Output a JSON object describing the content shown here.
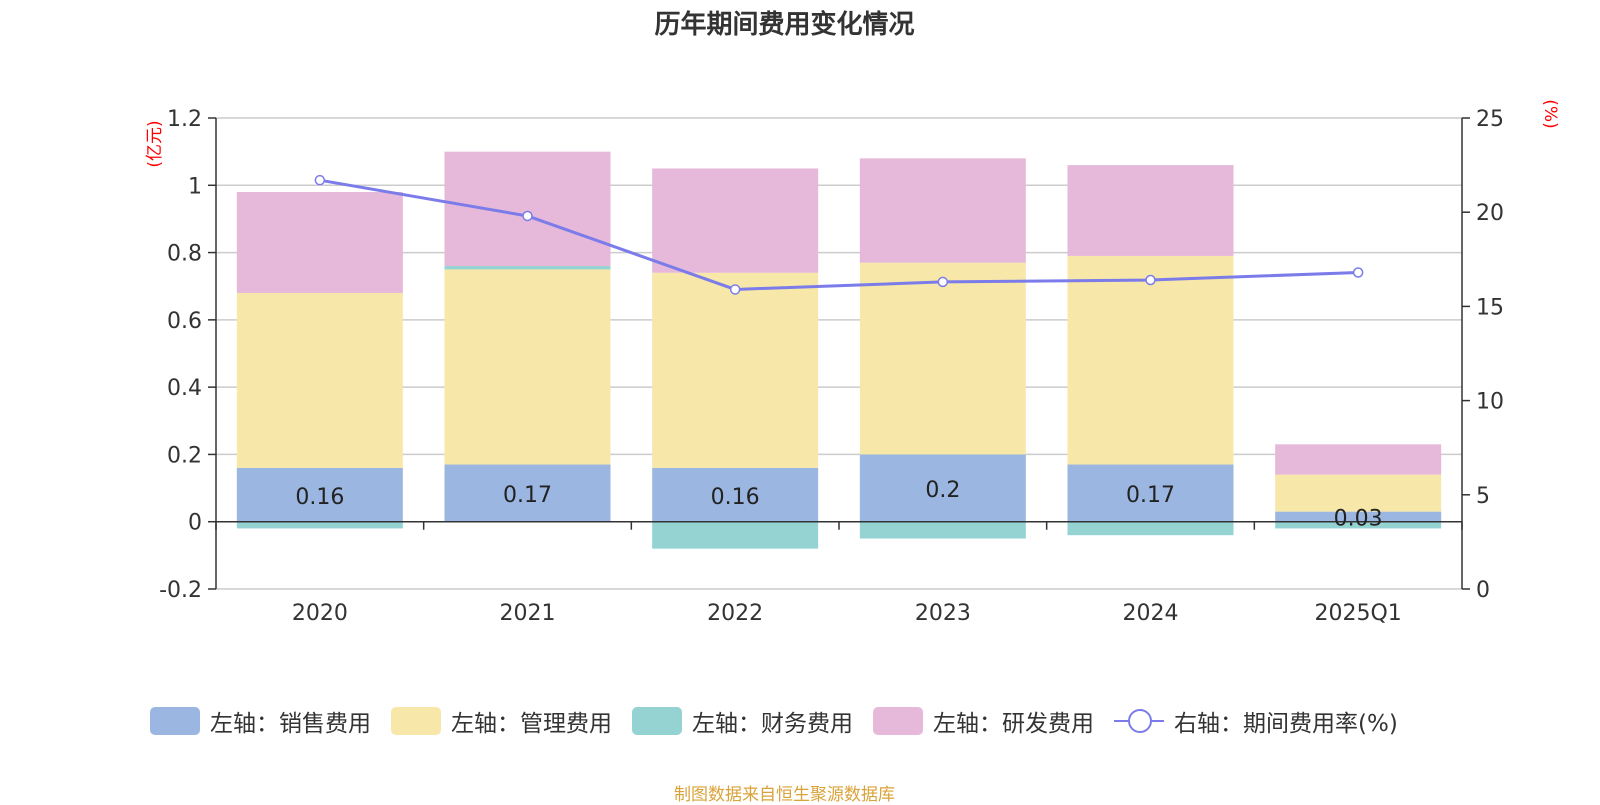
{
  "title": "历年期间费用变化情况",
  "footer": "制图数据来自恒生聚源数据库",
  "chart_data": {
    "type": "bar",
    "stacked": true,
    "categories": [
      "2020",
      "2021",
      "2022",
      "2023",
      "2024",
      "2025Q1"
    ],
    "left_axis": {
      "unit_label": "(亿元)",
      "ylim": [
        -0.2,
        1.2
      ],
      "ticks": [
        "-0.2",
        "0",
        "0.2",
        "0.4",
        "0.6",
        "0.8",
        "1",
        "1.2"
      ]
    },
    "right_axis": {
      "unit_label": "(%)",
      "ylim": [
        0,
        25
      ],
      "ticks": [
        "0",
        "5",
        "10",
        "15",
        "20",
        "25"
      ]
    },
    "series": [
      {
        "name": "左轴：销售费用",
        "kind": "bar",
        "axis": "left",
        "color": "#9bb7e1",
        "values": [
          0.16,
          0.17,
          0.16,
          0.2,
          0.17,
          0.03
        ],
        "labels": [
          "0.16",
          "0.17",
          "0.16",
          "0.2",
          "0.17",
          "0.03"
        ]
      },
      {
        "name": "左轴：管理费用",
        "kind": "bar",
        "axis": "left",
        "color": "#f7e7a9",
        "values": [
          0.52,
          0.58,
          0.58,
          0.57,
          0.62,
          0.11
        ]
      },
      {
        "name": "左轴：财务费用",
        "kind": "bar",
        "axis": "left",
        "color": "#95d3d3",
        "values": [
          -0.02,
          0.01,
          -0.08,
          -0.05,
          -0.04,
          -0.02
        ]
      },
      {
        "name": "左轴：研发费用",
        "kind": "bar",
        "axis": "left",
        "color": "#e6b8d9",
        "values": [
          0.3,
          0.34,
          0.31,
          0.31,
          0.27,
          0.09
        ]
      },
      {
        "name": "右轴：期间费用率(%)",
        "kind": "line",
        "axis": "right",
        "color": "#7b7cea",
        "values": [
          21.7,
          19.8,
          15.9,
          16.3,
          16.4,
          16.8
        ]
      }
    ],
    "grid": true,
    "legend_position": "bottom"
  }
}
